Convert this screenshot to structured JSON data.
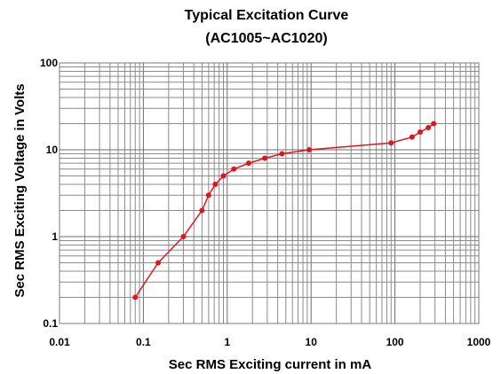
{
  "chart_data": {
    "type": "line",
    "title": "Typical Excitation Curve",
    "subtitle": "(AC1005~AC1020)",
    "xlabel": "Sec RMS Exciting current in mA",
    "ylabel": "Sec RMS Exciting Voltage in Volts",
    "x_scale": "log",
    "y_scale": "log",
    "xlim": [
      0.01,
      1000
    ],
    "ylim": [
      0.1,
      100
    ],
    "x_ticks": [
      {
        "value": 0.01,
        "label": "0.01"
      },
      {
        "value": 0.1,
        "label": "0.1"
      },
      {
        "value": 1,
        "label": "1"
      },
      {
        "value": 10,
        "label": "10"
      },
      {
        "value": 100,
        "label": "100"
      },
      {
        "value": 1000,
        "label": "1000"
      }
    ],
    "y_ticks": [
      {
        "value": 0.1,
        "label": "0.1"
      },
      {
        "value": 1,
        "label": "1"
      },
      {
        "value": 10,
        "label": "10"
      },
      {
        "value": 100,
        "label": "100"
      }
    ],
    "grid": true,
    "legend": "none",
    "series": [
      {
        "color": "#e0141e",
        "x": [
          0.08,
          0.15,
          0.3,
          0.5,
          0.6,
          0.72,
          0.9,
          1.2,
          1.8,
          2.8,
          4.5,
          9.5,
          90,
          160,
          200,
          250,
          290
        ],
        "y": [
          0.2,
          0.5,
          1.0,
          2.0,
          3.0,
          4.0,
          5.0,
          6.0,
          7.0,
          8.0,
          9.0,
          10.0,
          12.0,
          14.0,
          16.0,
          18.0,
          20.0
        ]
      }
    ]
  }
}
